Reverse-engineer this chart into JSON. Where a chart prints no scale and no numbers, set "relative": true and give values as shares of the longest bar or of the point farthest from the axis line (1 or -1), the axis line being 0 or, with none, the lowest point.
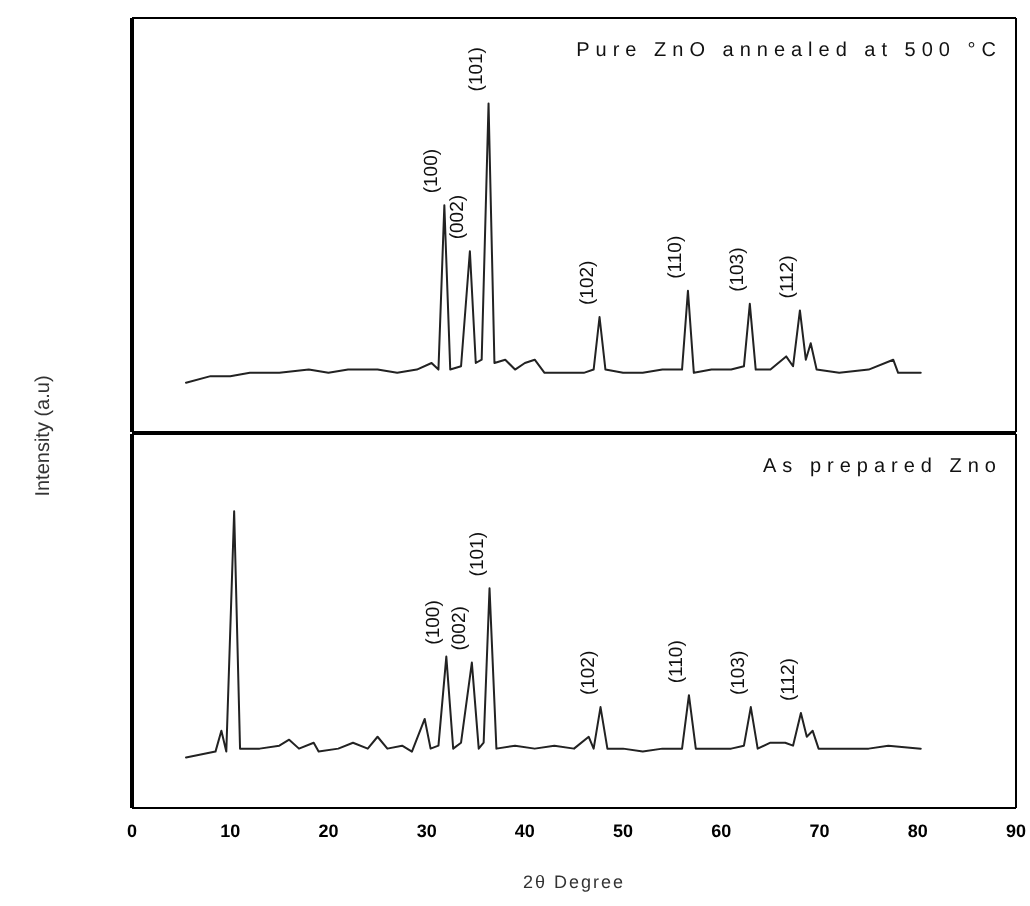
{
  "chart_data": [
    {
      "type": "line",
      "title": "Pure ZnO annealed at 500 °C",
      "relative": true,
      "xlim": [
        0,
        90
      ],
      "xticks": [
        0,
        10,
        20,
        30,
        40,
        50,
        60,
        70,
        80,
        90
      ],
      "tick_labels": false,
      "marker": "none",
      "series": [
        {
          "color": "#222222",
          "x": [
            5.5,
            8,
            10,
            12,
            15,
            18,
            20,
            22,
            25,
            27,
            29,
            30.5,
            31.2,
            31.8,
            32.4,
            33.5,
            34.4,
            35.0,
            35.6,
            36.3,
            36.9,
            38,
            39,
            40,
            41,
            42,
            44,
            46,
            47,
            47.6,
            48.2,
            50,
            52,
            54,
            56,
            56.6,
            57.2,
            59,
            61,
            62.3,
            62.9,
            63.5,
            65,
            66.6,
            67.3,
            68.0,
            68.6,
            69.1,
            69.7,
            72,
            75,
            77.5,
            78,
            80.3
          ],
          "values": [
            0.15,
            0.17,
            0.17,
            0.18,
            0.18,
            0.19,
            0.18,
            0.19,
            0.19,
            0.18,
            0.19,
            0.21,
            0.19,
            0.69,
            0.19,
            0.2,
            0.55,
            0.21,
            0.22,
            1,
            0.21,
            0.22,
            0.19,
            0.21,
            0.22,
            0.18,
            0.18,
            0.18,
            0.19,
            0.35,
            0.19,
            0.18,
            0.18,
            0.19,
            0.19,
            0.43,
            0.18,
            0.19,
            0.19,
            0.2,
            0.39,
            0.19,
            0.19,
            0.23,
            0.2,
            0.37,
            0.22,
            0.27,
            0.19,
            0.18,
            0.19,
            0.22,
            0.18,
            0.18
          ]
        }
      ],
      "annotations": [
        {
          "text": "(100)",
          "x": 31.8,
          "y": 0.69
        },
        {
          "text": "(002)",
          "x": 34.4,
          "y": 0.55
        },
        {
          "text": "(101)",
          "x": 36.3,
          "y": 1
        },
        {
          "text": "(102)",
          "x": 47.6,
          "y": 0.35
        },
        {
          "text": "(110)",
          "x": 56.6,
          "y": 0.43
        },
        {
          "text": "(103)",
          "x": 62.9,
          "y": 0.39
        },
        {
          "text": "(112)",
          "x": 68.0,
          "y": 0.37
        }
      ]
    },
    {
      "type": "line",
      "title": "As prepared Zno",
      "xlabel": "2θ Degree",
      "ylabel": "Intensity (a.u)",
      "relative": true,
      "xlim": [
        0,
        90
      ],
      "xticks": [
        0,
        10,
        20,
        30,
        40,
        50,
        60,
        70,
        80,
        90
      ],
      "tick_labels": "x",
      "marker": "none",
      "series": [
        {
          "color": "#222222",
          "x": [
            5.5,
            7,
            8.5,
            9.1,
            9.6,
            10.4,
            11.0,
            13,
            15,
            16,
            17,
            18.5,
            19,
            21,
            22.5,
            24,
            25,
            26,
            27.5,
            28.5,
            29.8,
            30.4,
            31.2,
            32,
            32.7,
            33.5,
            34.6,
            35.3,
            35.8,
            36.4,
            37.1,
            39,
            41,
            43,
            45,
            46.5,
            47.0,
            47.7,
            48.4,
            50,
            52,
            54,
            56,
            56.7,
            57.4,
            59,
            61,
            62.3,
            63.0,
            63.7,
            65,
            66.5,
            67.3,
            68.1,
            68.7,
            69.3,
            69.9,
            72,
            75,
            77,
            80.3
          ],
          "values": [
            0.17,
            0.18,
            0.19,
            0.26,
            0.19,
            1,
            0.2,
            0.2,
            0.21,
            0.23,
            0.2,
            0.22,
            0.19,
            0.2,
            0.22,
            0.2,
            0.24,
            0.2,
            0.21,
            0.19,
            0.3,
            0.2,
            0.21,
            0.51,
            0.2,
            0.22,
            0.49,
            0.2,
            0.22,
            0.74,
            0.2,
            0.21,
            0.2,
            0.21,
            0.2,
            0.24,
            0.2,
            0.34,
            0.2,
            0.2,
            0.19,
            0.2,
            0.2,
            0.38,
            0.2,
            0.2,
            0.2,
            0.21,
            0.34,
            0.2,
            0.22,
            0.22,
            0.21,
            0.32,
            0.24,
            0.26,
            0.2,
            0.2,
            0.2,
            0.21,
            0.2
          ]
        }
      ],
      "annotations": [
        {
          "text": "(100)",
          "x": 32,
          "y": 0.51
        },
        {
          "text": "(002)",
          "x": 34.6,
          "y": 0.49
        },
        {
          "text": "(101)",
          "x": 36.4,
          "y": 0.74
        },
        {
          "text": "(102)",
          "x": 47.7,
          "y": 0.34
        },
        {
          "text": "(110)",
          "x": 56.7,
          "y": 0.38
        },
        {
          "text": "(103)",
          "x": 63.0,
          "y": 0.34
        },
        {
          "text": "(112)",
          "x": 68.1,
          "y": 0.32
        }
      ]
    }
  ]
}
